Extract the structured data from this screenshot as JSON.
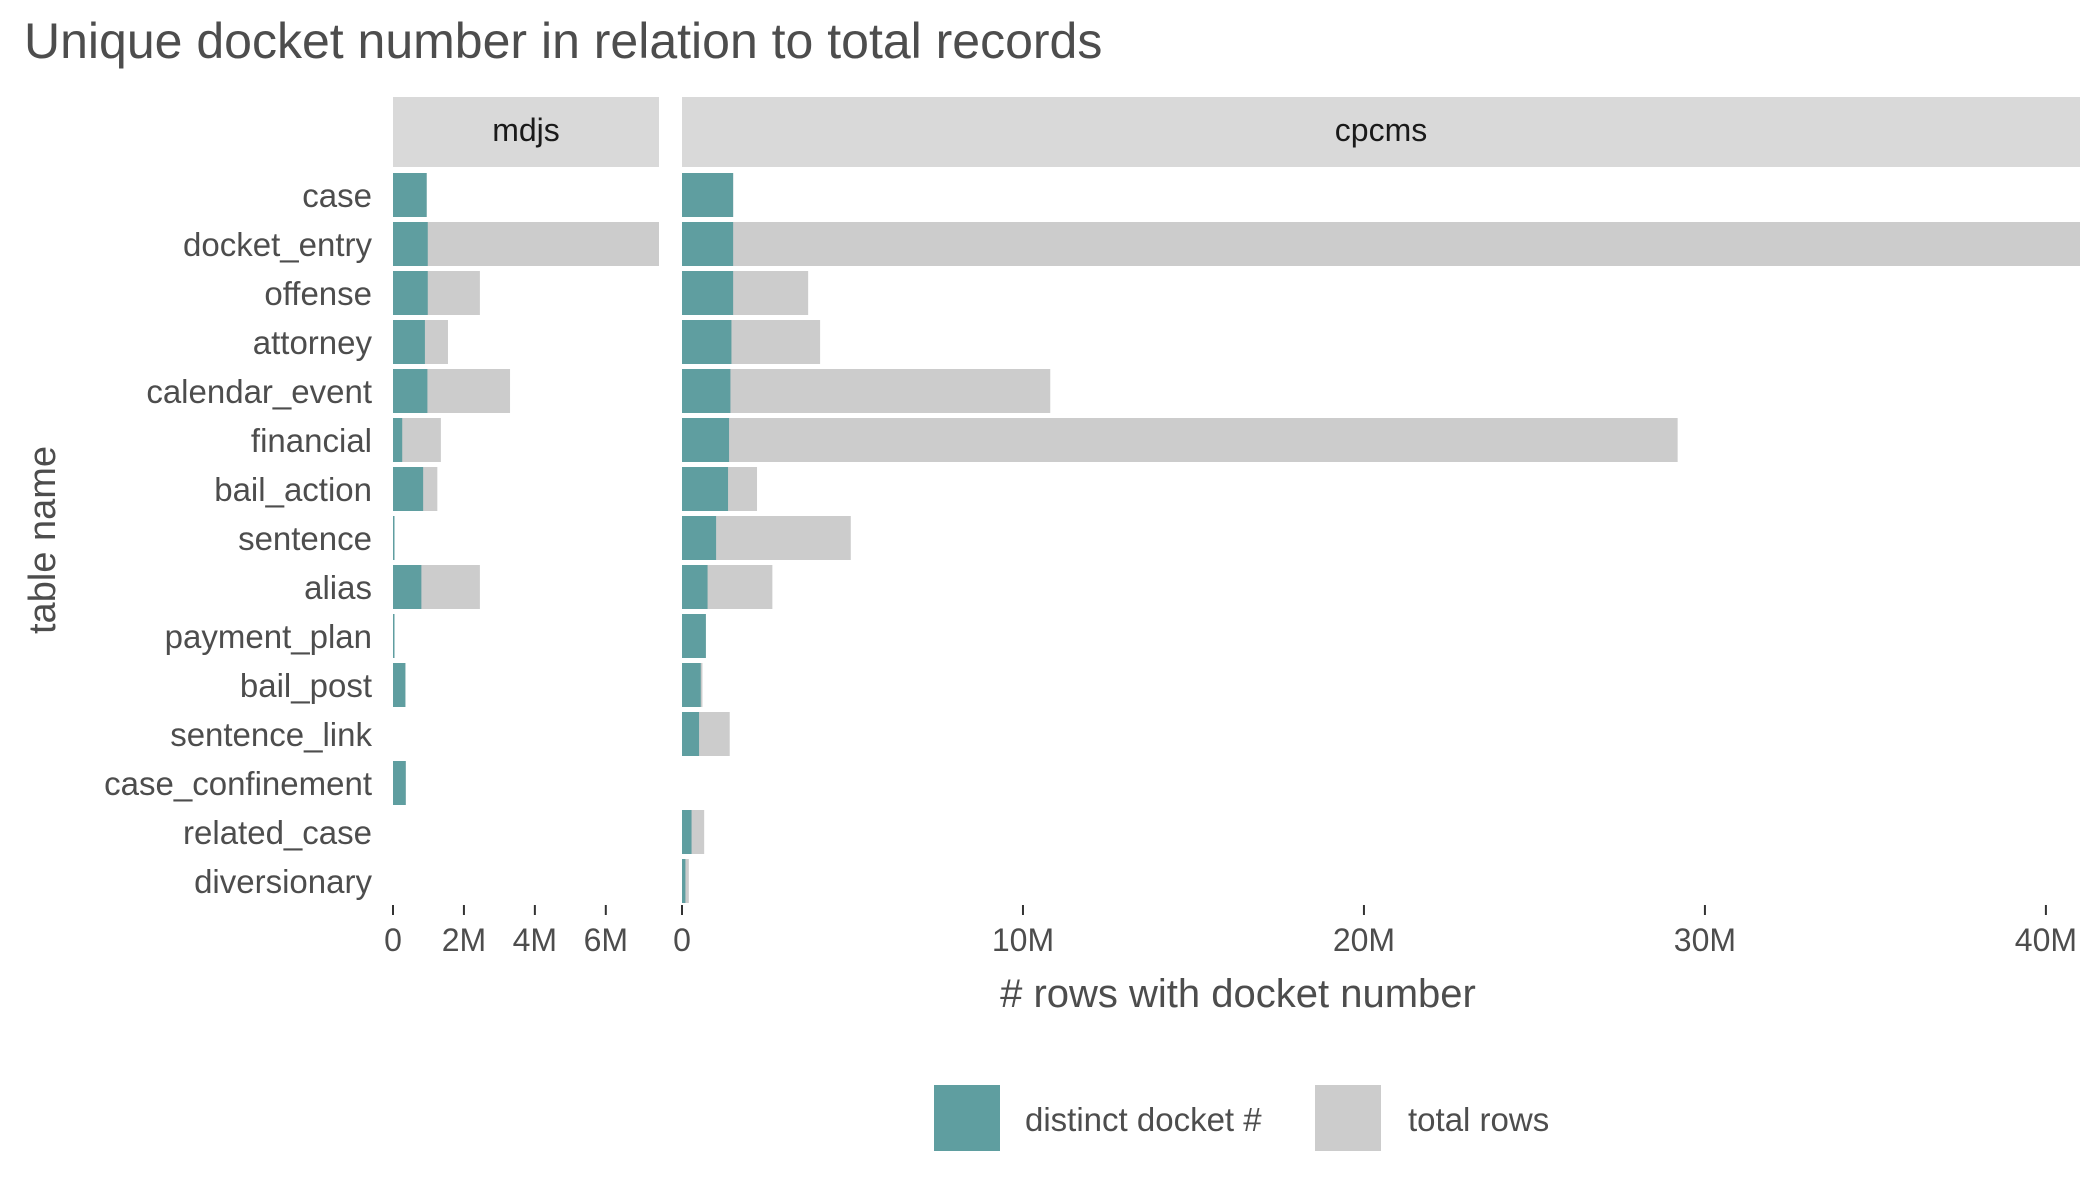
{
  "chart_data": {
    "type": "bar",
    "orientation": "horizontal",
    "stacking": "overlay",
    "title": "Unique docket number in relation to total records",
    "xlabel": "# rows with docket number",
    "ylabel": "table name",
    "categories": [
      "case",
      "docket_entry",
      "offense",
      "attorney",
      "calendar_event",
      "financial",
      "bail_action",
      "sentence",
      "alias",
      "payment_plan",
      "bail_post",
      "sentence_link",
      "case_confinement",
      "related_case",
      "diversionary"
    ],
    "series_legend": [
      {
        "name": "distinct docket #",
        "color": "#5f9ea0"
      },
      {
        "name": "total rows",
        "color": "#cccccc"
      }
    ],
    "legend_position": "bottom",
    "panels": [
      {
        "name": "mdjs",
        "xlim": [
          0,
          7500000
        ],
        "ticks": [
          0,
          2000000,
          4000000,
          6000000
        ],
        "tick_labels": [
          "0",
          "2M",
          "4M",
          "6M"
        ],
        "distinct": [
          950000.0,
          980000.0,
          980000.0,
          900000.0,
          970000.0,
          260000.0,
          850000.0,
          30000.0,
          800000.0,
          20000.0,
          350000.0,
          0,
          360000.0,
          0,
          0
        ],
        "total": [
          950000.0,
          7600000.0,
          2450000.0,
          1550000.0,
          3300000.0,
          1350000.0,
          1250000.0,
          30000.0,
          2450000.0,
          20000.0,
          350000.0,
          0,
          360000.0,
          0,
          0
        ]
      },
      {
        "name": "cpcms",
        "xlim": [
          0,
          41000000
        ],
        "ticks": [
          0,
          10000000,
          20000000,
          30000000,
          40000000
        ],
        "tick_labels": [
          "0",
          "10M",
          "20M",
          "30M",
          "40M"
        ],
        "distinct": [
          1500000.0,
          1500000.0,
          1500000.0,
          1450000.0,
          1420000.0,
          1380000.0,
          1350000.0,
          1000000.0,
          750000.0,
          700000.0,
          550000.0,
          500000.0,
          0,
          280000.0,
          100000.0
        ],
        "total": [
          1500000.0,
          42000000.0,
          3700000.0,
          4050000.0,
          10800000.0,
          29200000.0,
          2200000.0,
          4950000.0,
          2650000.0,
          700000.0,
          600000.0,
          1400000.0,
          0,
          650000.0,
          200000.0
        ]
      }
    ],
    "grid": false,
    "colors": {
      "distinct": "#5f9ea0",
      "total": "#cccccc",
      "strip": "#d9d9d9"
    }
  }
}
